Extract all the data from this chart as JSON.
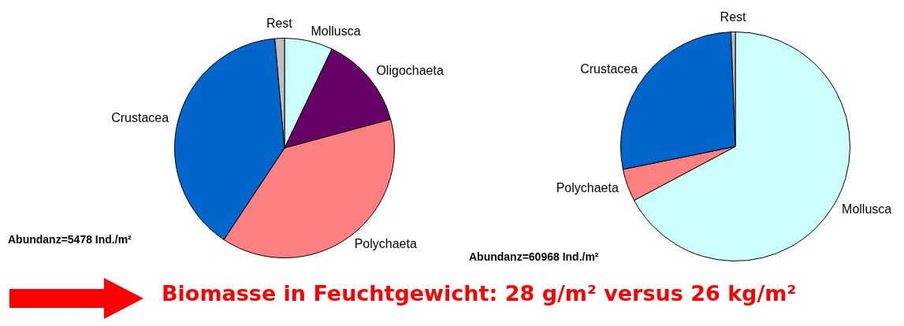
{
  "chart_data": [
    {
      "type": "pie",
      "categories": [
        "Mollusca",
        "Oligochaeta",
        "Polychaeta",
        "Crustacea",
        "Rest"
      ],
      "values": [
        7.1,
        13.7,
        38.5,
        39.3,
        1.4
      ],
      "colors": [
        "#ccffff",
        "#660066",
        "#ff8080",
        "#0066cc",
        "#c0c0c0"
      ],
      "legend": false,
      "annotations": [
        "Abundanz=5478 Ind./m²"
      ]
    },
    {
      "type": "pie",
      "categories": [
        "Mollusca",
        "Polychaeta",
        "Crustacea",
        "Rest"
      ],
      "values": [
        67.2,
        4.6,
        27.6,
        0.6
      ],
      "colors": [
        "#ccffff",
        "#ff8080",
        "#0066cc",
        "#c0c0c0"
      ],
      "legend": false,
      "annotations": [
        "Abundanz=60968 Ind./m²"
      ]
    },
    {
      "type": "other",
      "annotations": [
        "Biomasse in Feuchtgewicht: 28 g/m² versus 26 kg/m²"
      ]
    }
  ]
}
